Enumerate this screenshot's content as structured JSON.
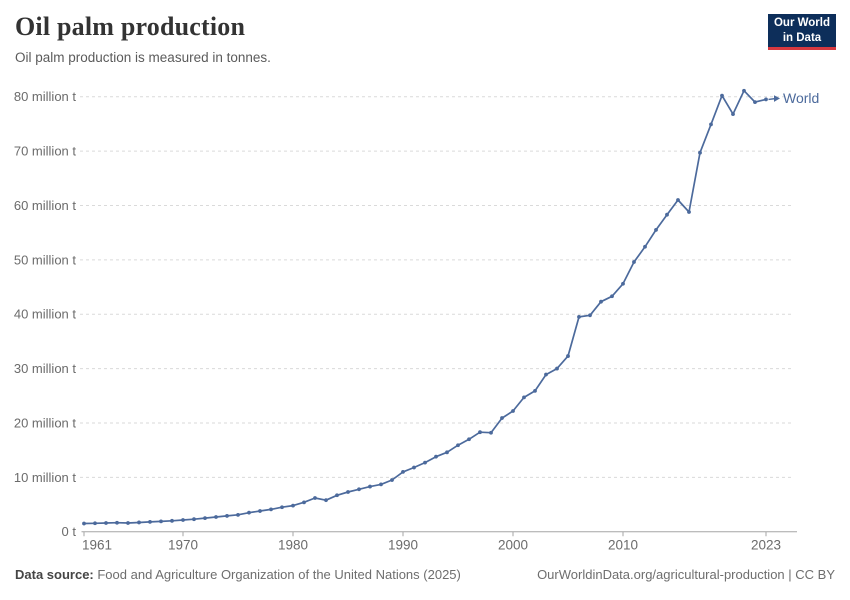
{
  "header": {
    "title": "Oil palm production",
    "subtitle": "Oil palm production is measured in tonnes.",
    "logo": {
      "line1": "Our World",
      "line2": "in Data"
    }
  },
  "chart_data": {
    "type": "line",
    "title": "Oil palm production",
    "unit": "tonnes",
    "grid": "horizontal-dashed",
    "legend_position": "end-of-line-label",
    "ylim": [
      0,
      80
    ],
    "xlim": [
      1961,
      2023
    ],
    "x_ticks": [
      1961,
      1970,
      1980,
      1990,
      2000,
      2010,
      2023
    ],
    "y_ticks": [
      {
        "v": 0,
        "label": "0 t"
      },
      {
        "v": 10,
        "label": "10 million t"
      },
      {
        "v": 20,
        "label": "20 million t"
      },
      {
        "v": 30,
        "label": "30 million t"
      },
      {
        "v": 40,
        "label": "40 million t"
      },
      {
        "v": 50,
        "label": "50 million t"
      },
      {
        "v": 60,
        "label": "60 million t"
      },
      {
        "v": 70,
        "label": "70 million t"
      },
      {
        "v": 80,
        "label": "80 million t"
      }
    ],
    "x": [
      1961,
      1962,
      1963,
      1964,
      1965,
      1966,
      1967,
      1968,
      1969,
      1970,
      1971,
      1972,
      1973,
      1974,
      1975,
      1976,
      1977,
      1978,
      1979,
      1980,
      1981,
      1982,
      1983,
      1984,
      1985,
      1986,
      1987,
      1988,
      1989,
      1990,
      1991,
      1992,
      1993,
      1994,
      1995,
      1996,
      1997,
      1998,
      1999,
      2000,
      2001,
      2002,
      2003,
      2004,
      2005,
      2006,
      2007,
      2008,
      2009,
      2010,
      2011,
      2012,
      2013,
      2014,
      2015,
      2016,
      2017,
      2018,
      2019,
      2020,
      2021,
      2022,
      2023
    ],
    "series": [
      {
        "name": "World",
        "color": "#4C6A9C",
        "values_million_t": [
          1.5,
          1.55,
          1.6,
          1.65,
          1.6,
          1.7,
          1.8,
          1.9,
          2.0,
          2.15,
          2.3,
          2.5,
          2.7,
          2.9,
          3.1,
          3.5,
          3.8,
          4.1,
          4.5,
          4.8,
          5.4,
          6.2,
          5.8,
          6.7,
          7.3,
          7.8,
          8.3,
          8.7,
          9.5,
          11.0,
          11.8,
          12.7,
          13.8,
          14.6,
          15.9,
          17.0,
          18.3,
          18.2,
          20.9,
          22.2,
          24.7,
          25.9,
          28.9,
          30.0,
          32.3,
          39.5,
          39.8,
          42.3,
          43.3,
          45.6,
          49.6,
          52.4,
          55.5,
          58.3,
          61.0,
          58.8,
          69.7,
          74.9,
          80.2,
          76.8,
          81.1,
          79.0,
          79.5
        ]
      }
    ]
  },
  "colors": {
    "series_blue": "#4C6A9C",
    "gridline": "#dadada",
    "axis": "#a6a6a6",
    "tick_label": "#6b6b6b",
    "logo_bg": "#0d2e5a",
    "logo_accent": "#d7383f"
  },
  "footer": {
    "source_label": "Data source:",
    "source_text": " Food and Agriculture Organization of the United Nations (2025)",
    "link_text": "OurWorldinData.org/agricultural-production | CC BY"
  }
}
